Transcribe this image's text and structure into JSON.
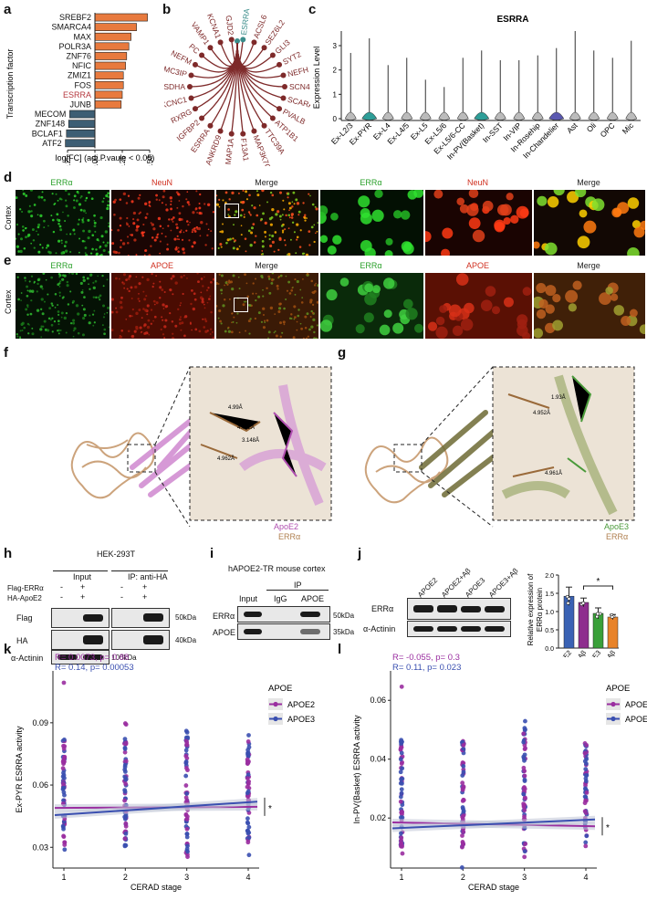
{
  "panel_letters": [
    "a",
    "b",
    "c",
    "d",
    "e",
    "f",
    "g",
    "h",
    "i",
    "j",
    "k",
    "l"
  ],
  "panel_a": {
    "ylabel": "Transcription factor",
    "xlabel": "log[FC] (adj.P.vaule < 0.05)",
    "ticks": [
      "-0.25",
      "0.00",
      "0.25",
      "0.50"
    ],
    "factors": [
      "SREBF2",
      "SMARCA4",
      "MAX",
      "POLR3A",
      "ZNF76",
      "NFIC",
      "ZMIZ1",
      "FOS",
      "ESRRA",
      "JUNB",
      "MECOM",
      "ZNF148",
      "BCLAF1",
      "ATF2"
    ],
    "values": [
      0.48,
      0.38,
      0.33,
      0.31,
      0.29,
      0.28,
      0.26,
      0.26,
      0.25,
      0.24,
      -0.23,
      -0.24,
      -0.26,
      -0.27
    ],
    "highlight": "ESRRA",
    "colors": {
      "up": "#e87a3e",
      "down": "#3d5e74",
      "highlight": "#b5373d"
    }
  },
  "panel_b": {
    "center": "ESRRA",
    "targets": [
      "ESRRA",
      "ACSL6",
      "SEZ6L2",
      "GLI3",
      "SYT2",
      "NEFH",
      "SCN4B",
      "SCARA3",
      "PVALB",
      "ATP1B1",
      "TTC39A",
      "MAP3K7CL",
      "F13A1",
      "MAP1A",
      "ANKRD9",
      "ESRRA",
      "IGFBP2",
      "RXRG",
      "KCNC1",
      "SDHA",
      "PSMC3IP",
      "NEFM",
      "PC",
      "VAMP1",
      "KCNA1",
      "GJD2"
    ],
    "colors": {
      "node": "#7e2a2a",
      "center": "#3a8c8a"
    }
  },
  "panel_c": {
    "title": "ESRRA",
    "ylabel": "Expression Level",
    "yticks": [
      "0",
      "1",
      "2",
      "3"
    ],
    "cell_types": [
      "Ex-L2/3",
      "Ex-PYR",
      "Ex-L4",
      "Ex-L4/5",
      "Ex-L5",
      "Ex-L5/6",
      "Ex-L5/6-CC",
      "In-PV(Basket)",
      "In-SST",
      "In-VIP",
      "In-Rosehip",
      "In-Chandelier",
      "Ast",
      "Oli",
      "OPC",
      "Mic"
    ],
    "max_values": [
      2.7,
      3.3,
      2.2,
      2.5,
      1.6,
      1.3,
      2.5,
      2.8,
      2.4,
      2.4,
      2.6,
      2.9,
      3.6,
      2.8,
      2.5,
      3.2
    ],
    "highlight": {
      "Ex-PYR": "#2e9e98",
      "In-PV(Basket)": "#2e9e98",
      "In-Chandelier": "#5a58b0"
    }
  },
  "panel_d": {
    "side_label": "Cortex",
    "labels": [
      "ERRα",
      "NeuN",
      "Merge",
      "ERRα",
      "NeuN",
      "Merge"
    ]
  },
  "panel_e": {
    "side_label": "Cortex",
    "labels": [
      "ERRα",
      "APOE",
      "Merge",
      "ERRα",
      "APOE",
      "Merge"
    ]
  },
  "panel_f": {
    "legend": [
      "ApoE2",
      "ERRα"
    ],
    "distances": [
      "4.99Å",
      "4.062Å",
      "3.148Å",
      "4.962Å"
    ],
    "colors": {
      "apoe": "#cf88cf",
      "errα": "#c79a6e"
    }
  },
  "panel_g": {
    "legend": [
      "ApoE3",
      "ERRα"
    ],
    "distances": [
      "1.93Å",
      "4.952Å",
      "4.961Å"
    ],
    "colors": {
      "apoe": "#6e6a35",
      "errα": "#c79a6e"
    }
  },
  "panel_h": {
    "title": "HEK-293T",
    "group_input": "Input",
    "group_ip": "IP: anti-HA",
    "rows": [
      "Flag-ERRα",
      "HA-ApoE2"
    ],
    "signs": [
      [
        "-",
        "+",
        "-",
        "+"
      ],
      [
        "-",
        "+",
        "-",
        "+"
      ]
    ],
    "blots": [
      "Flag",
      "HA",
      "α-Actinin"
    ],
    "sizes": [
      "50kDa",
      "40kDa",
      "100kDa"
    ]
  },
  "panel_i": {
    "title": "hAPOE2-TR mouse cortex",
    "ip_label": "IP",
    "lanes": [
      "Input",
      "IgG",
      "APOE"
    ],
    "blots": [
      "ERRα",
      "APOE"
    ],
    "sizes": [
      "50kDa",
      "35kDa"
    ]
  },
  "panel_j": {
    "lanes": [
      "APOE2",
      "APOE2+Aβ",
      "APOE3",
      "APOE3+Aβ"
    ],
    "blots": [
      "ERRα",
      "α-Actinin"
    ],
    "ylabel_line1": "Relative expression of",
    "ylabel_line2": "ERRα protein",
    "yticks": [
      "0.0",
      "0.5",
      "1.0",
      "1.5",
      "2.0"
    ],
    "categories": [
      "APOE2",
      "APOE2+Aβ",
      "APOE3",
      "APOE3+Aβ"
    ],
    "values": [
      1.42,
      1.25,
      0.95,
      0.85
    ],
    "errors": [
      0.25,
      0.12,
      0.15,
      0.07
    ],
    "significance": "*",
    "colors": [
      "#3a62b4",
      "#8e2e8e",
      "#3aa03a",
      "#e8832a"
    ]
  },
  "panel_k": {
    "stats_apoe2": "R= 0.0073, p= 0.88",
    "stats_apoe3": "R= 0.14, p= 0.00053",
    "ylabel": "Ex-PYR ESRRA activity",
    "xlabel": "CERAD stage",
    "xticks": [
      "1",
      "2",
      "3",
      "4"
    ],
    "yticks": [
      "0.03",
      "0.06",
      "0.09"
    ],
    "legend_title": "APOE",
    "series": [
      "APOE2",
      "APOE3"
    ],
    "significance": "*",
    "colors": {
      "APOE2": "#9a2ea0",
      "APOE3": "#3a4fb0"
    }
  },
  "panel_l": {
    "stats_apoe2": "R= -0.055, p= 0.3",
    "stats_apoe3": "R= 0.11, p= 0.023",
    "ylabel": "In-PV(Basket) ESRRA activity",
    "xlabel": "CERAD stage",
    "xticks": [
      "1",
      "2",
      "3",
      "4"
    ],
    "yticks": [
      "0.02",
      "0.04",
      "0.06"
    ],
    "legend_title": "APOE",
    "series": [
      "APOE2",
      "APOE3"
    ],
    "significance": "*",
    "colors": {
      "APOE2": "#9a2ea0",
      "APOE3": "#3a4fb0"
    }
  }
}
